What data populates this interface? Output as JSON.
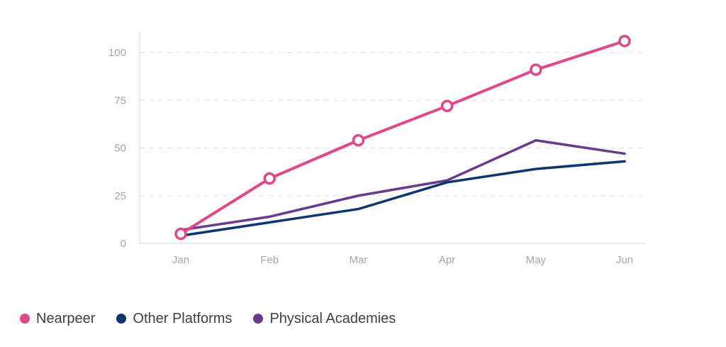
{
  "chart_data": {
    "type": "line",
    "categories": [
      "Jan",
      "Feb",
      "Mar",
      "Apr",
      "May",
      "Jun"
    ],
    "series": [
      {
        "name": "Nearpeer",
        "color": "#e0488a",
        "markers": true,
        "values": [
          5,
          34,
          54,
          72,
          91,
          106
        ]
      },
      {
        "name": "Other Platforms",
        "color": "#0d3570",
        "markers": false,
        "values": [
          4,
          11,
          18,
          32,
          39,
          43
        ]
      },
      {
        "name": "Physical Academies",
        "color": "#6a3b8c",
        "markers": false,
        "values": [
          7,
          14,
          25,
          33,
          54,
          47
        ]
      }
    ],
    "y_ticks": [
      "0",
      "25",
      "50",
      "75",
      "100"
    ],
    "ylim": [
      0,
      110
    ],
    "grid": "horizontal-dashed",
    "legend_position": "bottom-left"
  }
}
